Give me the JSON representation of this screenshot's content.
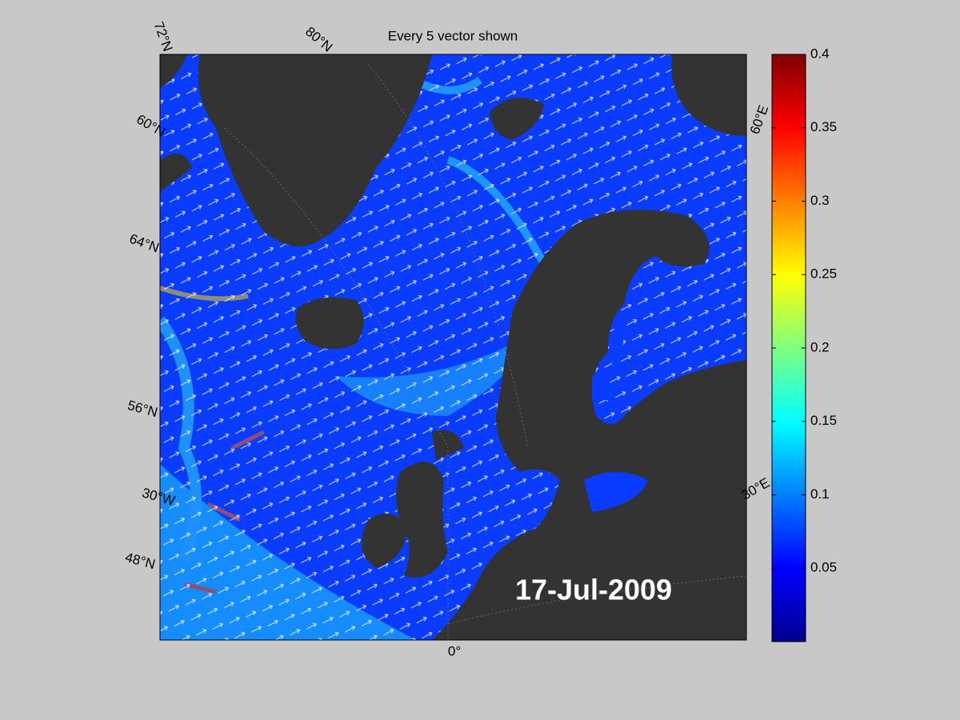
{
  "title": "Every 5 vector shown",
  "date_label": "17-Jul-2009",
  "graticule_labels": [
    "72°N",
    "80°N",
    "60°N",
    "64°N",
    "56°N",
    "30°W",
    "48°N",
    "0°",
    "60°E",
    "30°E"
  ],
  "colorbar": {
    "clim": [
      0,
      0.4
    ],
    "ticks": [
      0.05,
      0.1,
      0.15,
      0.2,
      0.25,
      0.3,
      0.35,
      0.4
    ],
    "colormap": "jet"
  }
}
